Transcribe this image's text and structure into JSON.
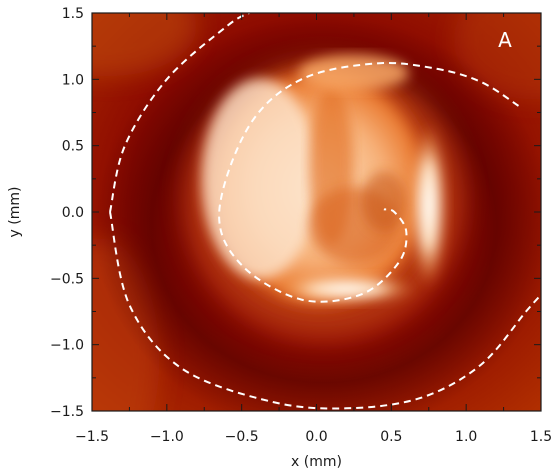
{
  "chart_data": {
    "type": "heatmap",
    "title": "",
    "xlabel": "x (mm)",
    "ylabel": "y (mm)",
    "xlim": [
      -1.5,
      1.5
    ],
    "ylim": [
      -1.5,
      1.5
    ],
    "x_ticks": [
      "−1.5",
      "−1.0",
      "−0.5",
      "0.0",
      "0.5",
      "1.0",
      "1.5"
    ],
    "y_ticks": [
      "−1.5",
      "−1.0",
      "−0.5",
      "0.0",
      "0.5",
      "1.0",
      "1.5"
    ],
    "x_tick_values": [
      -1.5,
      -1.0,
      -0.5,
      0.0,
      0.5,
      1.0,
      1.5
    ],
    "y_tick_values": [
      -1.5,
      -1.0,
      -0.5,
      0.0,
      0.5,
      1.0,
      1.5
    ],
    "panel_label": "A",
    "grid": false,
    "colormap": [
      "#5a0000",
      "#8b0a00",
      "#c93a00",
      "#f08a30",
      "#fbd0a0",
      "#fff2e0"
    ],
    "spiral_curves": [
      {
        "style": "dashed",
        "color": "#ffffff",
        "points": [
          [
            -1.38,
            0.0
          ],
          [
            -1.28,
            0.5
          ],
          [
            -1.0,
            1.0
          ],
          [
            -0.6,
            1.4
          ],
          [
            -0.45,
            1.5
          ]
        ]
      },
      {
        "style": "dashed",
        "color": "#ffffff",
        "points": [
          [
            -1.38,
            0.0
          ],
          [
            -1.25,
            -0.7
          ],
          [
            -0.9,
            -1.18
          ],
          [
            -0.3,
            -1.43
          ],
          [
            0.2,
            -1.48
          ],
          [
            0.7,
            -1.4
          ],
          [
            1.1,
            -1.15
          ],
          [
            1.4,
            -0.75
          ],
          [
            1.52,
            -0.6
          ]
        ]
      },
      {
        "style": "dashed",
        "color": "#ffffff",
        "points": [
          [
            1.35,
            0.8
          ],
          [
            1.1,
            0.98
          ],
          [
            0.8,
            1.08
          ],
          [
            0.4,
            1.12
          ],
          [
            -0.1,
            1.0
          ],
          [
            -0.45,
            0.65
          ],
          [
            -0.65,
            0.0
          ],
          [
            -0.5,
            -0.4
          ],
          [
            -0.1,
            -0.66
          ],
          [
            0.3,
            -0.62
          ],
          [
            0.55,
            -0.38
          ],
          [
            0.6,
            -0.15
          ],
          [
            0.52,
            0.0
          ],
          [
            0.45,
            0.02
          ]
        ]
      }
    ]
  }
}
